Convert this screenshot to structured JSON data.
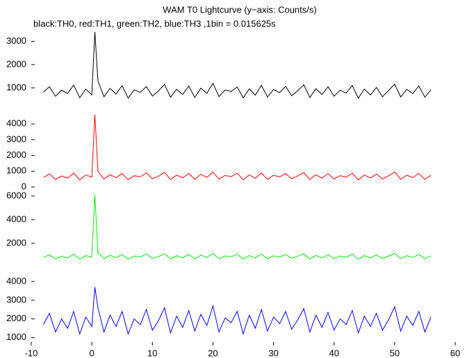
{
  "chart_data": [
    {
      "type": "line",
      "title": "WAM T0 Lightcurve (y−axis: Counts/s)",
      "subtitle": "black:TH0, red:TH1, green:TH2, blue:TH3 ,1bin = 0.015625s",
      "color": "#000000",
      "x": [
        -8,
        -7,
        -6,
        -5,
        -4,
        -3,
        -2,
        -1,
        0,
        0.5,
        1,
        2,
        3,
        4,
        5,
        6,
        7,
        8,
        9,
        10,
        11,
        12,
        13,
        14,
        15,
        16,
        17,
        18,
        19,
        20,
        21,
        22,
        23,
        24,
        25,
        26,
        27,
        28,
        29,
        30,
        31,
        32,
        33,
        34,
        35,
        36,
        37,
        38,
        39,
        40,
        41,
        42,
        43,
        44,
        45,
        46,
        47,
        48,
        49,
        50,
        51,
        52,
        53,
        54,
        55,
        56
      ],
      "values": [
        820,
        1050,
        640,
        900,
        760,
        1120,
        580,
        950,
        700,
        3400,
        1300,
        620,
        980,
        740,
        1100,
        560,
        920,
        810,
        1060,
        650,
        870,
        1150,
        600,
        940,
        720,
        1080,
        590,
        990,
        770,
        1200,
        630,
        910,
        850,
        1040,
        570,
        960,
        690,
        1110,
        610,
        930,
        800,
        1070,
        660,
        880,
        1130,
        590,
        970,
        720,
        1050,
        640,
        900,
        780,
        1100,
        560,
        950,
        700,
        1020,
        620,
        890,
        1160,
        610,
        940,
        760,
        1080,
        600,
        920
      ],
      "xlim": [
        -10,
        60
      ],
      "ylim": [
        0,
        3430
      ],
      "yticks": [
        1000,
        2000,
        3000
      ]
    },
    {
      "type": "line",
      "color": "#ff0000",
      "x": [
        -8,
        -7,
        -6,
        -5,
        -4,
        -3,
        -2,
        -1,
        0,
        0.5,
        1,
        2,
        3,
        4,
        5,
        6,
        7,
        8,
        9,
        10,
        11,
        12,
        13,
        14,
        15,
        16,
        17,
        18,
        19,
        20,
        21,
        22,
        23,
        24,
        25,
        26,
        27,
        28,
        29,
        30,
        31,
        32,
        33,
        34,
        35,
        36,
        37,
        38,
        39,
        40,
        41,
        42,
        43,
        44,
        45,
        46,
        47,
        48,
        49,
        50,
        51,
        52,
        53,
        54,
        55,
        56
      ],
      "values": [
        600,
        820,
        480,
        700,
        560,
        880,
        450,
        760,
        620,
        4600,
        1000,
        500,
        780,
        590,
        850,
        460,
        720,
        640,
        900,
        520,
        680,
        930,
        470,
        750,
        580,
        860,
        490,
        800,
        610,
        940,
        500,
        730,
        660,
        870,
        460,
        770,
        550,
        890,
        480,
        740,
        640,
        850,
        530,
        700,
        910,
        470,
        780,
        560,
        840,
        510,
        720,
        620,
        880,
        450,
        760,
        570,
        820,
        500,
        710,
        950,
        490,
        750,
        600,
        860,
        480,
        740
      ],
      "xlim": [
        -10,
        60
      ],
      "ylim": [
        0,
        4800
      ],
      "yticks": [
        0,
        1000,
        2000,
        3000,
        4000
      ]
    },
    {
      "type": "line",
      "color": "#00ee00",
      "x": [
        -8,
        -7,
        -6,
        -5,
        -4,
        -3,
        -2,
        -1,
        0,
        0.5,
        1,
        2,
        3,
        4,
        5,
        6,
        7,
        8,
        9,
        10,
        11,
        12,
        13,
        14,
        15,
        16,
        17,
        18,
        19,
        20,
        21,
        22,
        23,
        24,
        25,
        26,
        27,
        28,
        29,
        30,
        31,
        32,
        33,
        34,
        35,
        36,
        37,
        38,
        39,
        40,
        41,
        42,
        43,
        44,
        45,
        46,
        47,
        48,
        49,
        50,
        51,
        52,
        53,
        54,
        55,
        56
      ],
      "values": [
        800,
        1020,
        680,
        900,
        760,
        1080,
        650,
        960,
        820,
        6100,
        1200,
        700,
        980,
        790,
        1050,
        660,
        920,
        840,
        1100,
        720,
        880,
        1130,
        670,
        950,
        780,
        1060,
        690,
        1000,
        810,
        1140,
        700,
        930,
        860,
        1070,
        660,
        970,
        750,
        1090,
        680,
        940,
        840,
        1050,
        730,
        900,
        1110,
        670,
        980,
        760,
        1040,
        710,
        920,
        820,
        1080,
        650,
        960,
        770,
        1020,
        700,
        910,
        1150,
        690,
        950,
        800,
        1060,
        680,
        940
      ],
      "xlim": [
        -10,
        60
      ],
      "ylim": [
        0,
        6760
      ],
      "yticks": [
        2000,
        4000,
        6000
      ]
    },
    {
      "type": "line",
      "color": "#0000ff",
      "x": [
        -8,
        -7,
        -6,
        -5,
        -4,
        -3,
        -2,
        -1,
        0,
        0.5,
        1,
        2,
        3,
        4,
        5,
        6,
        7,
        8,
        9,
        10,
        11,
        12,
        13,
        14,
        15,
        16,
        17,
        18,
        19,
        20,
        21,
        22,
        23,
        24,
        25,
        26,
        27,
        28,
        29,
        30,
        31,
        32,
        33,
        34,
        35,
        36,
        37,
        38,
        39,
        40,
        41,
        42,
        43,
        44,
        45,
        46,
        47,
        48,
        49,
        50,
        51,
        52,
        53,
        54,
        55,
        56
      ],
      "values": [
        1700,
        2300,
        1300,
        2000,
        1500,
        2400,
        1200,
        2100,
        1600,
        3700,
        2600,
        1300,
        2200,
        1600,
        2400,
        1200,
        2000,
        1700,
        2500,
        1400,
        1900,
        2600,
        1250,
        2150,
        1550,
        2450,
        1350,
        2250,
        1650,
        2700,
        1300,
        2050,
        1800,
        2400,
        1200,
        2200,
        1500,
        2500,
        1350,
        2100,
        1750,
        2400,
        1450,
        1950,
        2550,
        1300,
        2200,
        1550,
        2350,
        1400,
        2000,
        1700,
        2450,
        1250,
        2150,
        1600,
        2300,
        1400,
        1950,
        2650,
        1350,
        2150,
        1650,
        2400,
        1300,
        2100
      ],
      "xlim": [
        -10,
        60
      ],
      "ylim": [
        580,
        4780
      ],
      "yticks": [
        1000,
        2000,
        3000,
        4000
      ],
      "xticks": [
        -10,
        0,
        10,
        20,
        30,
        40,
        50,
        60
      ]
    }
  ]
}
